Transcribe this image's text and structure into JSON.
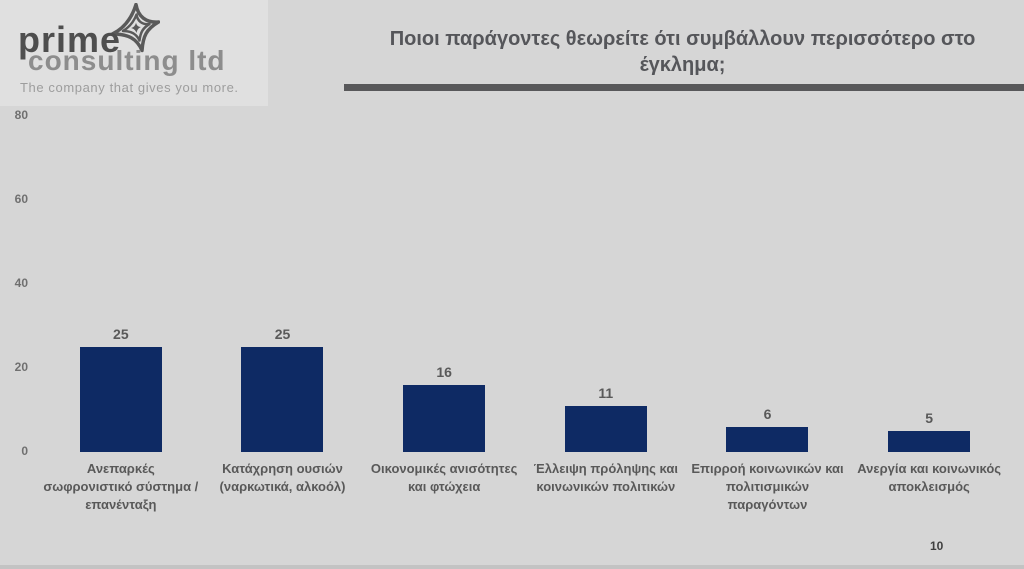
{
  "logo": {
    "name_line1": "prime",
    "name_line2": "consulting ltd",
    "tagline": "The company that gives you more."
  },
  "header": {
    "title": "Ποιοι παράγοντες θεωρείτε ότι συμβάλλουν περισσότερο στο έγκλημα;"
  },
  "page_number": "10",
  "colors": {
    "background": "#d6d6d6",
    "bar": "#0e2a64",
    "title_text": "#55565a",
    "accent_rule": "#58585a",
    "label_text": "#595959"
  },
  "chart_data": {
    "type": "bar",
    "title": "Ποιοι παράγοντες θεωρείτε ότι συμβάλλουν περισσότερο στο έγκλημα;",
    "categories": [
      "Ανεπαρκές σωφρονιστικό σύστημα / επανένταξη",
      "Κατάχρηση ουσιών (ναρκωτικά, αλκοόλ)",
      "Οικονομικές ανισότητες και φτώχεια",
      "Έλλειψη πρόληψης και κοινωνικών πολιτικών",
      "Επιρροή κοινωνικών και πολιτισμικών παραγόντων",
      "Ανεργία και κοινωνικός αποκλεισμός"
    ],
    "values": [
      25,
      25,
      16,
      11,
      6,
      5
    ],
    "data_labels": [
      "25",
      "25",
      "16",
      "11",
      "6",
      "5"
    ],
    "xlabel": "",
    "ylabel": "",
    "ylim": [
      0,
      80
    ],
    "yticks": [
      0,
      20,
      40,
      60,
      80
    ],
    "grid": false,
    "legend": "none",
    "bar_color": "#0e2a64"
  }
}
